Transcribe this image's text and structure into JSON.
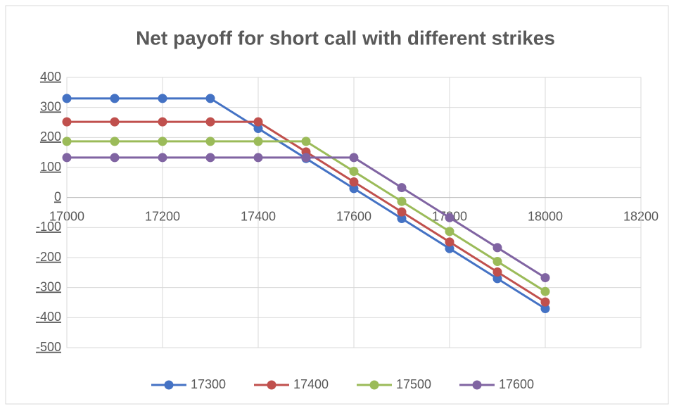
{
  "chart_data": {
    "type": "line",
    "title": "Net payoff for short call with different strikes",
    "x": [
      17000,
      17100,
      17200,
      17300,
      17400,
      17500,
      17600,
      17700,
      17800,
      17900,
      18000
    ],
    "series": [
      {
        "name": "17300",
        "color": "#4472c4",
        "values": [
          330,
          330,
          330,
          330,
          230,
          130,
          30,
          -70,
          -170,
          -270,
          -370
        ]
      },
      {
        "name": "17400",
        "color": "#c0504d",
        "values": [
          252,
          252,
          252,
          252,
          252,
          152,
          52,
          -48,
          -148,
          -248,
          -348
        ]
      },
      {
        "name": "17500",
        "color": "#9bbb59",
        "values": [
          187,
          187,
          187,
          187,
          187,
          187,
          87,
          -13,
          -113,
          -213,
          -313
        ]
      },
      {
        "name": "17600",
        "color": "#8064a2",
        "values": [
          133,
          133,
          133,
          133,
          133,
          133,
          133,
          33,
          -67,
          -167,
          -267
        ]
      }
    ],
    "xlim": [
      17000,
      18200
    ],
    "xticks": [
      17000,
      17200,
      17400,
      17600,
      17800,
      18000,
      18200
    ],
    "ylim": [
      -500,
      400
    ],
    "yticks": [
      -500,
      -400,
      -300,
      -200,
      -100,
      0,
      100,
      200,
      300,
      400
    ],
    "grid": true,
    "legend": "bottom"
  }
}
